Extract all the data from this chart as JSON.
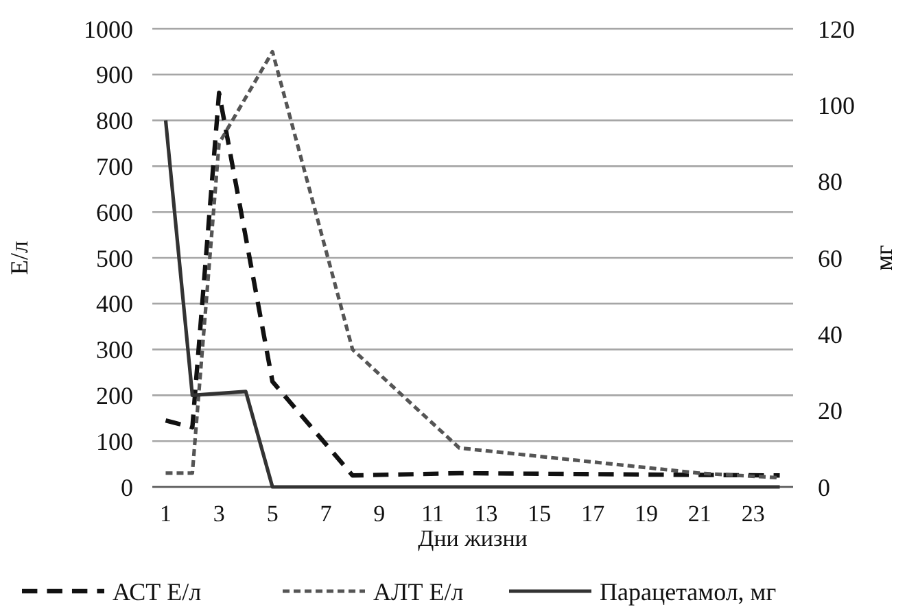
{
  "chart_data": {
    "type": "line",
    "xlabel": "Дни жизни",
    "ylabel": "Е/л",
    "y2label": "мг",
    "xlim": [
      0.5,
      24.5
    ],
    "xticks": [
      1,
      3,
      5,
      7,
      9,
      11,
      13,
      15,
      17,
      19,
      21,
      23
    ],
    "ylim": [
      0,
      1000
    ],
    "yticks": [
      0,
      100,
      200,
      300,
      400,
      500,
      600,
      700,
      800,
      900,
      1000
    ],
    "y2lim": [
      0,
      120
    ],
    "y2ticks": [
      0,
      20,
      40,
      60,
      80,
      100,
      120
    ],
    "grid": "y",
    "legend": "bottom",
    "marker": "none",
    "series": [
      {
        "name": "АСТ Е/л",
        "color": "#111111",
        "line_style": "dashed",
        "x": [
          1,
          2,
          3,
          5,
          8,
          12,
          24
        ],
        "values": [
          145,
          130,
          860,
          230,
          25,
          30,
          25
        ]
      },
      {
        "name": "АЛТ Е/л",
        "color": "#555555",
        "line_style": "dotted",
        "x": [
          1,
          2,
          3,
          5,
          8,
          12,
          21,
          24
        ],
        "values": [
          30,
          30,
          750,
          950,
          300,
          85,
          30,
          20
        ]
      },
      {
        "name": "Парацетамол, мг",
        "color": "#333333",
        "line_style": "solid",
        "axis": "y2",
        "x": [
          1,
          2,
          4,
          5,
          24
        ],
        "values": [
          96,
          24,
          25,
          0,
          0
        ]
      }
    ]
  }
}
